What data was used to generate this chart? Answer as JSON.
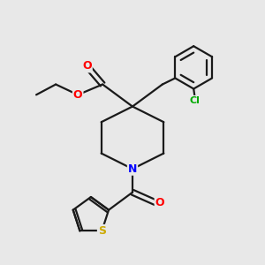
{
  "background_color": "#e8e8e8",
  "bond_color": "#1a1a1a",
  "atom_colors": {
    "O": "#ff0000",
    "N": "#0000ff",
    "S": "#ccaa00",
    "Cl": "#00aa00",
    "C": "#1a1a1a"
  },
  "figsize": [
    3.0,
    3.0
  ],
  "dpi": 100
}
